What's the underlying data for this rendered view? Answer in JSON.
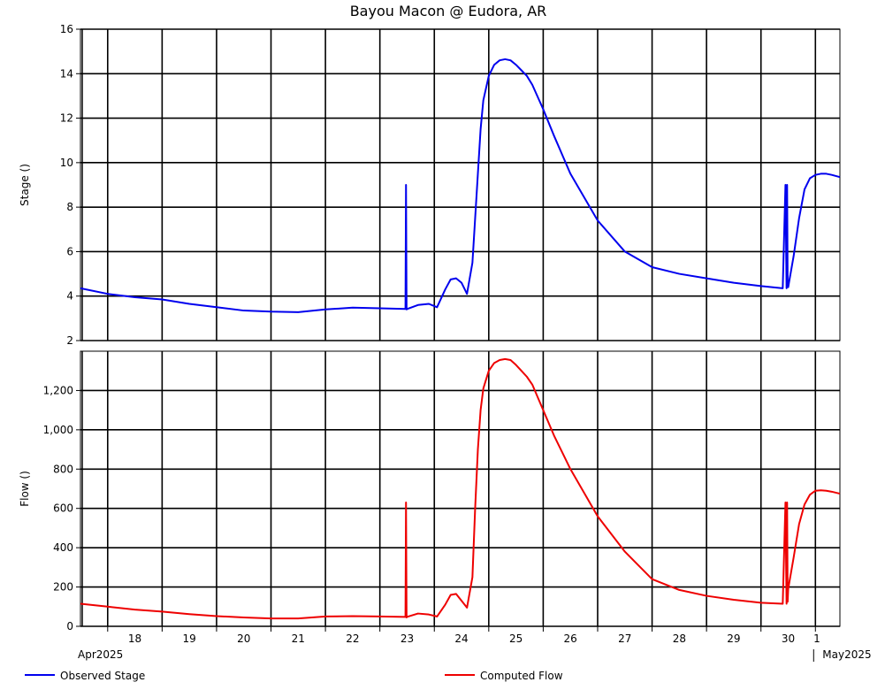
{
  "chart_data": [
    {
      "type": "line",
      "title": "Bayou Macon @ Eudora, AR",
      "ylabel": "Stage ()",
      "ylim": [
        2,
        16
      ],
      "yticks": [
        "2",
        "4",
        "6",
        "8",
        "10",
        "12",
        "14",
        "16"
      ],
      "grid": true,
      "series": [
        {
          "name": "Observed Stage",
          "color": "#0000ee",
          "x": [
            17.5,
            18.0,
            18.5,
            19.0,
            19.5,
            20.0,
            20.5,
            21.0,
            21.5,
            22.0,
            22.5,
            23.0,
            23.47,
            23.48,
            23.49,
            23.5,
            23.7,
            23.9,
            24.05,
            24.2,
            24.3,
            24.4,
            24.5,
            24.6,
            24.7,
            24.75,
            24.8,
            24.85,
            24.9,
            25.0,
            25.1,
            25.2,
            25.3,
            25.4,
            25.5,
            25.6,
            25.7,
            25.8,
            26.0,
            26.2,
            26.5,
            27.0,
            27.5,
            28.0,
            28.5,
            29.0,
            29.5,
            30.0,
            30.4,
            30.45,
            30.47,
            30.48,
            30.49,
            30.5,
            30.6,
            30.7,
            30.8,
            30.9,
            31.0,
            31.1,
            31.2,
            31.3,
            31.45
          ],
          "y": [
            4.35,
            4.1,
            3.95,
            3.85,
            3.65,
            3.5,
            3.35,
            3.3,
            3.28,
            3.4,
            3.48,
            3.45,
            3.42,
            9.0,
            3.4,
            3.42,
            3.6,
            3.65,
            3.5,
            4.3,
            4.75,
            4.8,
            4.6,
            4.1,
            5.5,
            7.5,
            9.5,
            11.5,
            12.8,
            13.9,
            14.4,
            14.6,
            14.65,
            14.6,
            14.4,
            14.15,
            13.9,
            13.5,
            12.4,
            11.2,
            9.5,
            7.4,
            6.0,
            5.3,
            5.0,
            4.8,
            4.6,
            4.45,
            4.35,
            9.0,
            4.35,
            9.0,
            4.55,
            4.4,
            5.8,
            7.5,
            8.8,
            9.3,
            9.45,
            9.5,
            9.5,
            9.45,
            9.35
          ]
        }
      ]
    },
    {
      "type": "line",
      "ylabel": "Flow ()",
      "ylim": [
        0,
        1400
      ],
      "yticks": [
        "0",
        "200",
        "400",
        "600",
        "800",
        "1,000",
        "1,200"
      ],
      "grid": true,
      "xlabels": [
        "18",
        "19",
        "20",
        "21",
        "22",
        "23",
        "24",
        "25",
        "26",
        "27",
        "28",
        "29",
        "30",
        "1"
      ],
      "xlabel_secondary": [
        "Apr2025",
        "May2025"
      ],
      "series": [
        {
          "name": "Computed Flow",
          "color": "#ee0000",
          "x": [
            17.5,
            18.0,
            18.5,
            19.0,
            19.5,
            20.0,
            20.5,
            21.0,
            21.5,
            22.0,
            22.5,
            23.0,
            23.47,
            23.48,
            23.49,
            23.5,
            23.7,
            23.9,
            24.05,
            24.2,
            24.3,
            24.4,
            24.5,
            24.6,
            24.7,
            24.75,
            24.8,
            24.85,
            24.9,
            25.0,
            25.1,
            25.2,
            25.3,
            25.4,
            25.5,
            25.6,
            25.7,
            25.8,
            26.0,
            26.2,
            26.5,
            27.0,
            27.5,
            28.0,
            28.5,
            29.0,
            29.5,
            30.0,
            30.4,
            30.45,
            30.47,
            30.48,
            30.49,
            30.5,
            30.6,
            30.7,
            30.8,
            30.9,
            31.0,
            31.1,
            31.2,
            31.3,
            31.45
          ],
          "y": [
            115,
            100,
            85,
            75,
            62,
            52,
            45,
            40,
            40,
            50,
            52,
            50,
            48,
            630,
            45,
            48,
            65,
            60,
            50,
            110,
            160,
            165,
            130,
            95,
            250,
            600,
            900,
            1100,
            1210,
            1300,
            1340,
            1355,
            1360,
            1355,
            1330,
            1300,
            1270,
            1230,
            1100,
            970,
            800,
            560,
            380,
            240,
            185,
            155,
            135,
            120,
            115,
            630,
            115,
            630,
            125,
            190,
            350,
            520,
            620,
            670,
            690,
            692,
            690,
            685,
            675
          ]
        }
      ]
    }
  ]
}
